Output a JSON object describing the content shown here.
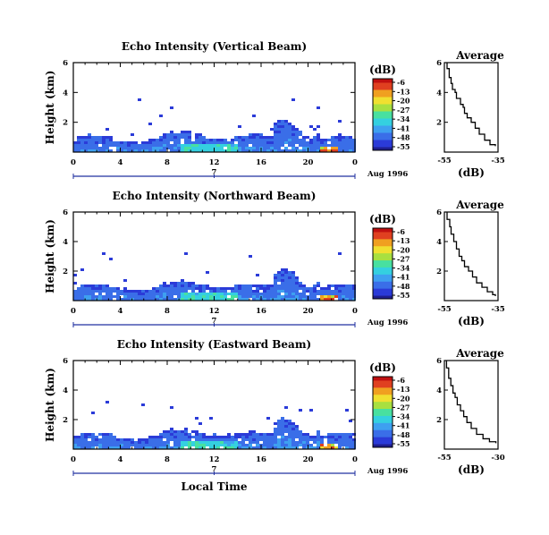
{
  "colors": {
    "scale": [
      "#1f1f8f",
      "#2b3bd8",
      "#3a6ee8",
      "#3ea0f0",
      "#34d0e0",
      "#48e0a0",
      "#a8e040",
      "#f0e030",
      "#f0a020",
      "#e04020",
      "#c01010"
    ]
  },
  "shared": {
    "x_ticks": [
      "0",
      "4",
      "8",
      "12",
      "16",
      "20",
      "0"
    ],
    "date_marker": "7",
    "date_label": "Aug 1996",
    "xlabel": "Local Time"
  },
  "chart_data": [
    {
      "type": "heatmap",
      "title": "Echo Intensity (Vertical Beam)",
      "ylabel": "Height (km)",
      "y_ticks": [
        "2",
        "4",
        "6"
      ],
      "xlim": [
        0,
        24
      ],
      "ylim": [
        0,
        6
      ],
      "colorbar": {
        "unit": "(dB)",
        "ticks": [
          "-6",
          "-13",
          "-20",
          "-27",
          "-34",
          "-41",
          "-48",
          "-55"
        ]
      },
      "profile": {
        "title": "Average",
        "xlabel": "(dB)",
        "x_ticks": [
          "-55",
          "-35"
        ],
        "y_ticks": [
          "2",
          "4",
          "6"
        ],
        "xlim": [
          -55,
          -35
        ],
        "ylim": [
          0,
          6
        ],
        "points": [
          [
            -54,
            6.0
          ],
          [
            -54,
            5.6
          ],
          [
            -53.2,
            5.0
          ],
          [
            -52.5,
            4.6
          ],
          [
            -52,
            4.2
          ],
          [
            -51,
            4.0
          ],
          [
            -50.5,
            3.6
          ],
          [
            -49,
            3.2
          ],
          [
            -48,
            3.0
          ],
          [
            -47.5,
            2.6
          ],
          [
            -46.5,
            2.3
          ],
          [
            -45,
            2.0
          ],
          [
            -43.5,
            1.6
          ],
          [
            -42,
            1.2
          ],
          [
            -40,
            0.8
          ],
          [
            -38,
            0.5
          ],
          [
            -36,
            0.4
          ]
        ]
      }
    },
    {
      "type": "heatmap",
      "title": "Echo Intensity (Northward Beam)",
      "ylabel": "Height (km)",
      "y_ticks": [
        "2",
        "4",
        "6"
      ],
      "xlim": [
        0,
        24
      ],
      "ylim": [
        0,
        6
      ],
      "colorbar": {
        "unit": "(dB)",
        "ticks": [
          "-6",
          "-13",
          "-20",
          "-27",
          "-34",
          "-41",
          "-48",
          "-55"
        ]
      },
      "profile": {
        "title": "Average",
        "xlabel": "(dB)",
        "x_ticks": [
          "-55",
          "-35"
        ],
        "y_ticks": [
          "2",
          "4",
          "6"
        ],
        "xlim": [
          -55,
          -35
        ],
        "ylim": [
          0,
          6
        ],
        "points": [
          [
            -54,
            6.0
          ],
          [
            -54,
            5.5
          ],
          [
            -53,
            5.0
          ],
          [
            -52.5,
            4.5
          ],
          [
            -51.5,
            4.0
          ],
          [
            -50.5,
            3.5
          ],
          [
            -49.5,
            3.0
          ],
          [
            -48.5,
            2.7
          ],
          [
            -47.5,
            2.3
          ],
          [
            -46,
            2.0
          ],
          [
            -44.5,
            1.6
          ],
          [
            -43,
            1.2
          ],
          [
            -41,
            0.9
          ],
          [
            -39,
            0.6
          ],
          [
            -37,
            0.4
          ],
          [
            -36,
            0.3
          ]
        ]
      }
    },
    {
      "type": "heatmap",
      "title": "Echo Intensity (Eastward Beam)",
      "ylabel": "Height (km)",
      "y_ticks": [
        "2",
        "4",
        "6"
      ],
      "xlim": [
        0,
        24
      ],
      "ylim": [
        0,
        6
      ],
      "colorbar": {
        "unit": "(dB)",
        "ticks": [
          "-6",
          "-13",
          "-20",
          "-27",
          "-34",
          "-41",
          "-48",
          "-55"
        ]
      },
      "profile": {
        "title": "Average",
        "xlabel": "(dB)",
        "x_ticks": [
          "-55",
          "-30"
        ],
        "y_ticks": [
          "2",
          "4",
          "6"
        ],
        "xlim": [
          -55,
          -30
        ],
        "ylim": [
          0,
          6
        ],
        "points": [
          [
            -54,
            6.0
          ],
          [
            -54,
            5.5
          ],
          [
            -53,
            4.8
          ],
          [
            -52,
            4.3
          ],
          [
            -51,
            3.8
          ],
          [
            -50,
            3.5
          ],
          [
            -49,
            3.0
          ],
          [
            -47.5,
            2.6
          ],
          [
            -46,
            2.2
          ],
          [
            -44.5,
            1.8
          ],
          [
            -42.5,
            1.4
          ],
          [
            -40,
            1.0
          ],
          [
            -37,
            0.7
          ],
          [
            -34,
            0.5
          ],
          [
            -31,
            0.4
          ]
        ]
      }
    }
  ]
}
